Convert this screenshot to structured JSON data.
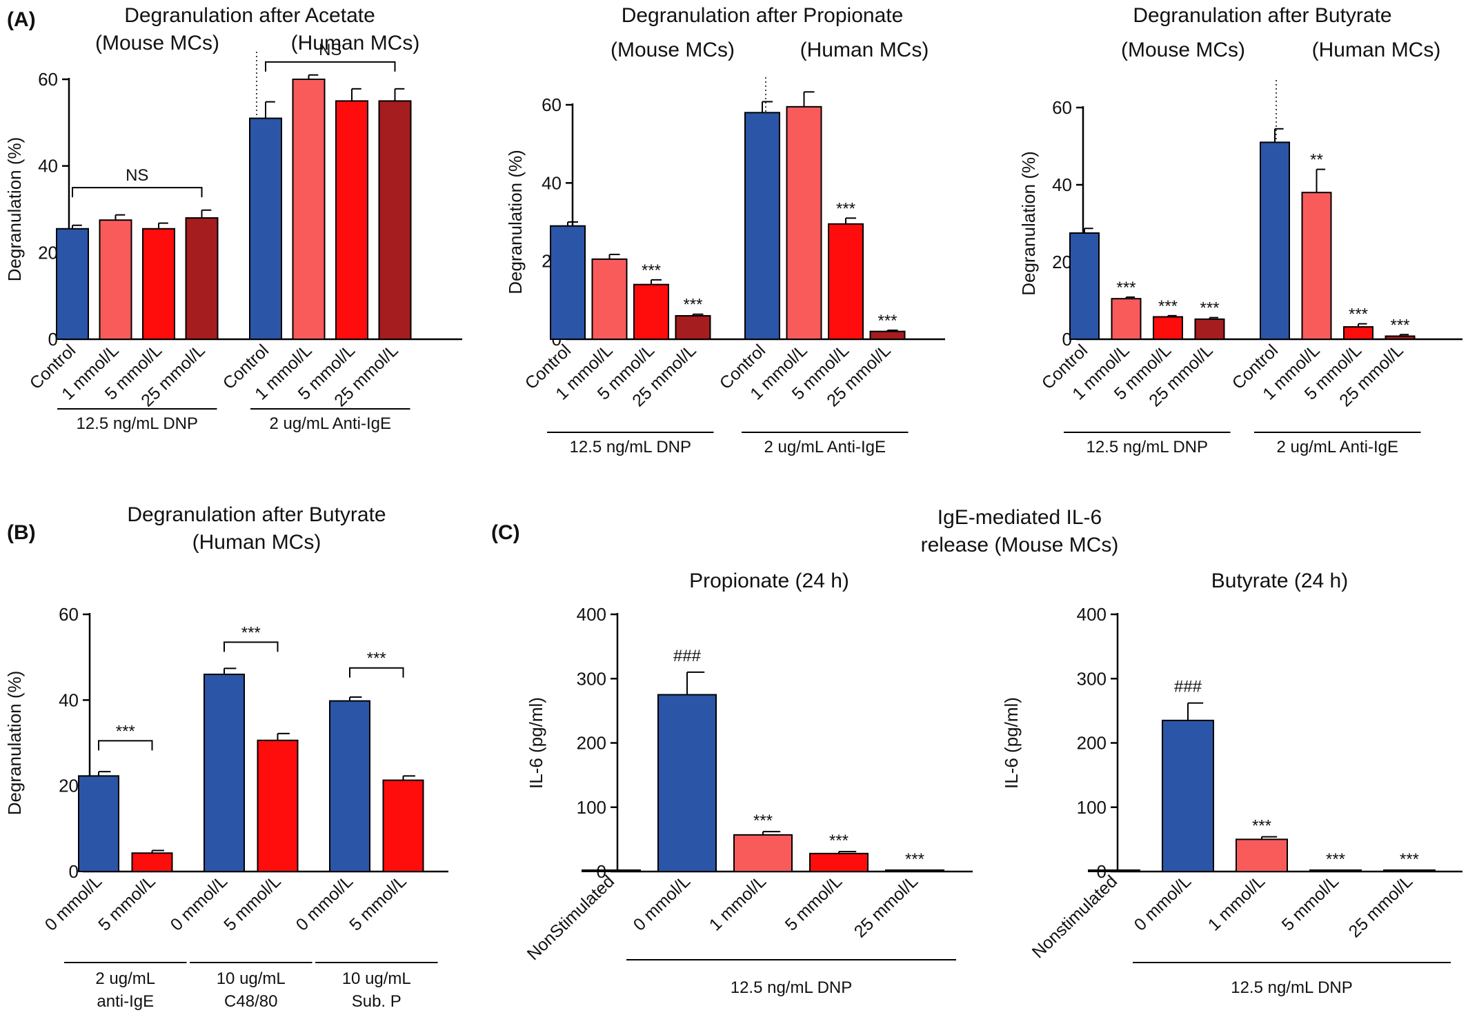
{
  "panel_labels": [
    "(A)",
    "(B)",
    "(C)"
  ],
  "panel_c_heading": [
    "IgE-mediated IL-6",
    "release (Mouse MCs)"
  ],
  "colors": {
    "blue": "#2b55a6",
    "pink": "#f95b5b",
    "red": "#ff0d0d",
    "darkred": "#a61d1f"
  },
  "chart_data": [
    {
      "type": "bar",
      "title": "Degranulation after Acetate",
      "subtitles": [
        "(Mouse MCs)",
        "(Human MCs)"
      ],
      "ylabel": "Degranulation (%)",
      "ylim": [
        0,
        60
      ],
      "yticks": [
        0,
        20,
        40,
        60
      ],
      "categories": [
        "Control",
        "1 mmol/L",
        "5 mmol/L",
        "25 mmol/L",
        "Control",
        "1 mmol/L",
        "5 mmol/L",
        "25 mmol/L"
      ],
      "values": [
        25.5,
        27.5,
        25.5,
        28,
        51,
        60,
        55,
        55
      ],
      "errors": [
        0.8,
        1.2,
        1.3,
        1.8,
        3.8,
        1.0,
        2.8,
        2.8
      ],
      "bar_colors": [
        "blue",
        "pink",
        "red",
        "darkred",
        "blue",
        "pink",
        "red",
        "darkred"
      ],
      "significance": [
        "",
        "",
        "",
        "",
        "",
        "",
        "",
        ""
      ],
      "groups": [
        {
          "label": "12.5 ng/mL DNP",
          "from": 0,
          "to": 3
        },
        {
          "label": "2 ug/mL Anti-IgE",
          "from": 4,
          "to": 7
        }
      ],
      "brackets": [
        {
          "from": 0,
          "to": 3,
          "label": "NS",
          "value": 35
        },
        {
          "from": 4,
          "to": 7,
          "label": "NS",
          "value": 64
        }
      ],
      "separator_after": 3
    },
    {
      "type": "bar",
      "title": "Degranulation after Propionate",
      "subtitles": [
        "(Mouse MCs)",
        "(Human MCs)"
      ],
      "ylabel": "Degranulation (%)",
      "ylim": [
        0,
        60
      ],
      "yticks": [
        0,
        20,
        40,
        60
      ],
      "categories": [
        "Control",
        "1 mmol/L",
        "5 mmol/L",
        "25 mmol/L",
        "Control",
        "1 mmol/L",
        "5 mmol/L",
        "25 mmol/L"
      ],
      "values": [
        29,
        20.5,
        14,
        6,
        58,
        59.5,
        29.5,
        2
      ],
      "errors": [
        1.0,
        1.2,
        1.2,
        0.4,
        2.8,
        3.8,
        1.5,
        0.3
      ],
      "bar_colors": [
        "blue",
        "pink",
        "red",
        "darkred",
        "blue",
        "pink",
        "red",
        "darkred"
      ],
      "significance": [
        "",
        "",
        "***",
        "***",
        "",
        "",
        "***",
        "***"
      ],
      "groups": [
        {
          "label": "12.5 ng/mL DNP",
          "from": 0,
          "to": 3
        },
        {
          "label": "2 ug/mL Anti-IgE",
          "from": 4,
          "to": 7
        }
      ],
      "brackets": [],
      "separator_after": 3
    },
    {
      "type": "bar",
      "title": "Degranulation after Butyrate",
      "subtitles": [
        "(Mouse MCs)",
        "(Human MCs)"
      ],
      "ylabel": "Degranulation (%)",
      "ylim": [
        0,
        60
      ],
      "yticks": [
        0,
        20,
        40,
        60
      ],
      "categories": [
        "Control",
        "1 mmol/L",
        "5 mmol/L",
        "25 mmol/L",
        "Control",
        "1 mmol/L",
        "5 mmol/L",
        "25 mmol/L"
      ],
      "values": [
        27.5,
        10.5,
        5.8,
        5.2,
        51,
        38,
        3.2,
        0.8
      ],
      "errors": [
        1.2,
        0.4,
        0.3,
        0.4,
        3.5,
        6.0,
        0.8,
        0.4
      ],
      "bar_colors": [
        "blue",
        "pink",
        "red",
        "darkred",
        "blue",
        "pink",
        "red",
        "darkred"
      ],
      "significance": [
        "",
        "***",
        "***",
        "***",
        "",
        "**",
        "***",
        "***"
      ],
      "groups": [
        {
          "label": "12.5 ng/mL DNP",
          "from": 0,
          "to": 3
        },
        {
          "label": "2 ug/mL Anti-IgE",
          "from": 4,
          "to": 7
        }
      ],
      "brackets": [],
      "separator_after": 3
    },
    {
      "type": "bar",
      "title": "Degranulation after Butyrate",
      "subtitles": [
        "(Human MCs)"
      ],
      "ylabel": "Degranulation (%)",
      "ylim": [
        0,
        60
      ],
      "yticks": [
        0,
        20,
        40,
        60
      ],
      "categories": [
        "0 mmol/L",
        "5 mmol/L",
        "0 mmol/L",
        "5 mmol/L",
        "0 mmol/L",
        "5 mmol/L"
      ],
      "values": [
        22.3,
        4.3,
        46,
        30.6,
        39.8,
        21.3
      ],
      "errors": [
        1.0,
        0.6,
        1.4,
        1.6,
        0.9,
        1.0
      ],
      "bar_colors": [
        "blue",
        "red",
        "blue",
        "red",
        "blue",
        "red"
      ],
      "significance": [
        "",
        "",
        "",
        "",
        "",
        ""
      ],
      "groups": [
        {
          "label": [
            "2 ug/mL",
            "anti-IgE"
          ],
          "from": 0,
          "to": 1
        },
        {
          "label": [
            "10 ug/mL",
            "C48/80"
          ],
          "from": 2,
          "to": 3
        },
        {
          "label": [
            "10 ug/mL",
            "Sub. P"
          ],
          "from": 4,
          "to": 5
        }
      ],
      "brackets": [
        {
          "from": 0,
          "to": 1,
          "label": "***",
          "value": 30.5
        },
        {
          "from": 2,
          "to": 3,
          "label": "***",
          "value": 53.5
        },
        {
          "from": 4,
          "to": 5,
          "label": "***",
          "value": 47.5
        }
      ],
      "separator_after": null
    },
    {
      "type": "bar",
      "title": "Propionate (24 h)",
      "subtitles": [],
      "ylabel": "IL-6 (pg/ml)",
      "ylim": [
        0,
        400
      ],
      "yticks": [
        0,
        100,
        200,
        300,
        400
      ],
      "categories": [
        "NonStimulated",
        "0 mmol/L",
        "1 mmol/L",
        "5 mmol/L",
        "25 mmol/L"
      ],
      "values": [
        1.5,
        275,
        57,
        28,
        1.5
      ],
      "errors": [
        0.5,
        35,
        5,
        3,
        0.5
      ],
      "bar_colors": [
        "blue",
        "blue",
        "pink",
        "red",
        "darkred"
      ],
      "significance": [
        "",
        "###",
        "***",
        "***",
        "***"
      ],
      "groups": [
        {
          "label": "12.5 ng/mL  DNP",
          "from": 1,
          "to": 4
        }
      ],
      "brackets": [],
      "separator_after": null
    },
    {
      "type": "bar",
      "title": "Butyrate (24 h)",
      "subtitles": [],
      "ylabel": "IL-6 (pg/ml)",
      "ylim": [
        0,
        400
      ],
      "yticks": [
        0,
        100,
        200,
        300,
        400
      ],
      "categories": [
        "Nonstimulated",
        "0 mmol/L",
        "1 mmol/L",
        "5 mmol/L",
        "25 mmol/L"
      ],
      "values": [
        1.5,
        235,
        50,
        1.5,
        1.5
      ],
      "errors": [
        0.5,
        27,
        4,
        0.5,
        0.5
      ],
      "bar_colors": [
        "blue",
        "blue",
        "pink",
        "red",
        "darkred"
      ],
      "significance": [
        "",
        "###",
        "***",
        "***",
        "***"
      ],
      "groups": [
        {
          "label": "12.5 ng/mL  DNP",
          "from": 1,
          "to": 4
        }
      ],
      "brackets": [],
      "separator_after": null
    }
  ]
}
